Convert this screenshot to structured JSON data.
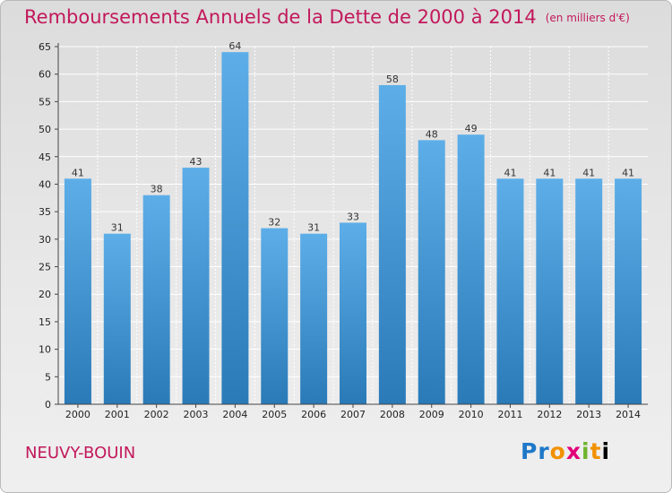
{
  "header": {
    "title": "Remboursements Annuels de la Dette de 2000 à 2014",
    "subtitle": "(en milliers d'€)"
  },
  "footer": {
    "place": "NEUVY-BOUIN",
    "logo_letters": [
      "P",
      "r",
      "o",
      "x",
      "i",
      "t",
      "i"
    ]
  },
  "chart_data": {
    "type": "bar",
    "title": "Remboursements Annuels de la Dette de 2000 à 2014",
    "subtitle": "(en milliers d'€)",
    "categories": [
      "2000",
      "2001",
      "2002",
      "2003",
      "2004",
      "2005",
      "2006",
      "2007",
      "2008",
      "2009",
      "2010",
      "2011",
      "2012",
      "2013",
      "2014"
    ],
    "values": [
      41,
      31,
      38,
      43,
      64,
      32,
      31,
      33,
      58,
      48,
      49,
      41,
      41,
      41,
      41
    ],
    "ylim": [
      0,
      65
    ],
    "yticks": [
      0,
      5,
      10,
      15,
      20,
      25,
      30,
      35,
      40,
      45,
      50,
      55,
      60,
      65
    ],
    "grid": true,
    "data_labels": true,
    "colors": {
      "bar_top": "#5daee8",
      "bar_bottom": "#2a7ab8",
      "grid": "#ffffff",
      "axis": "#444444"
    }
  }
}
